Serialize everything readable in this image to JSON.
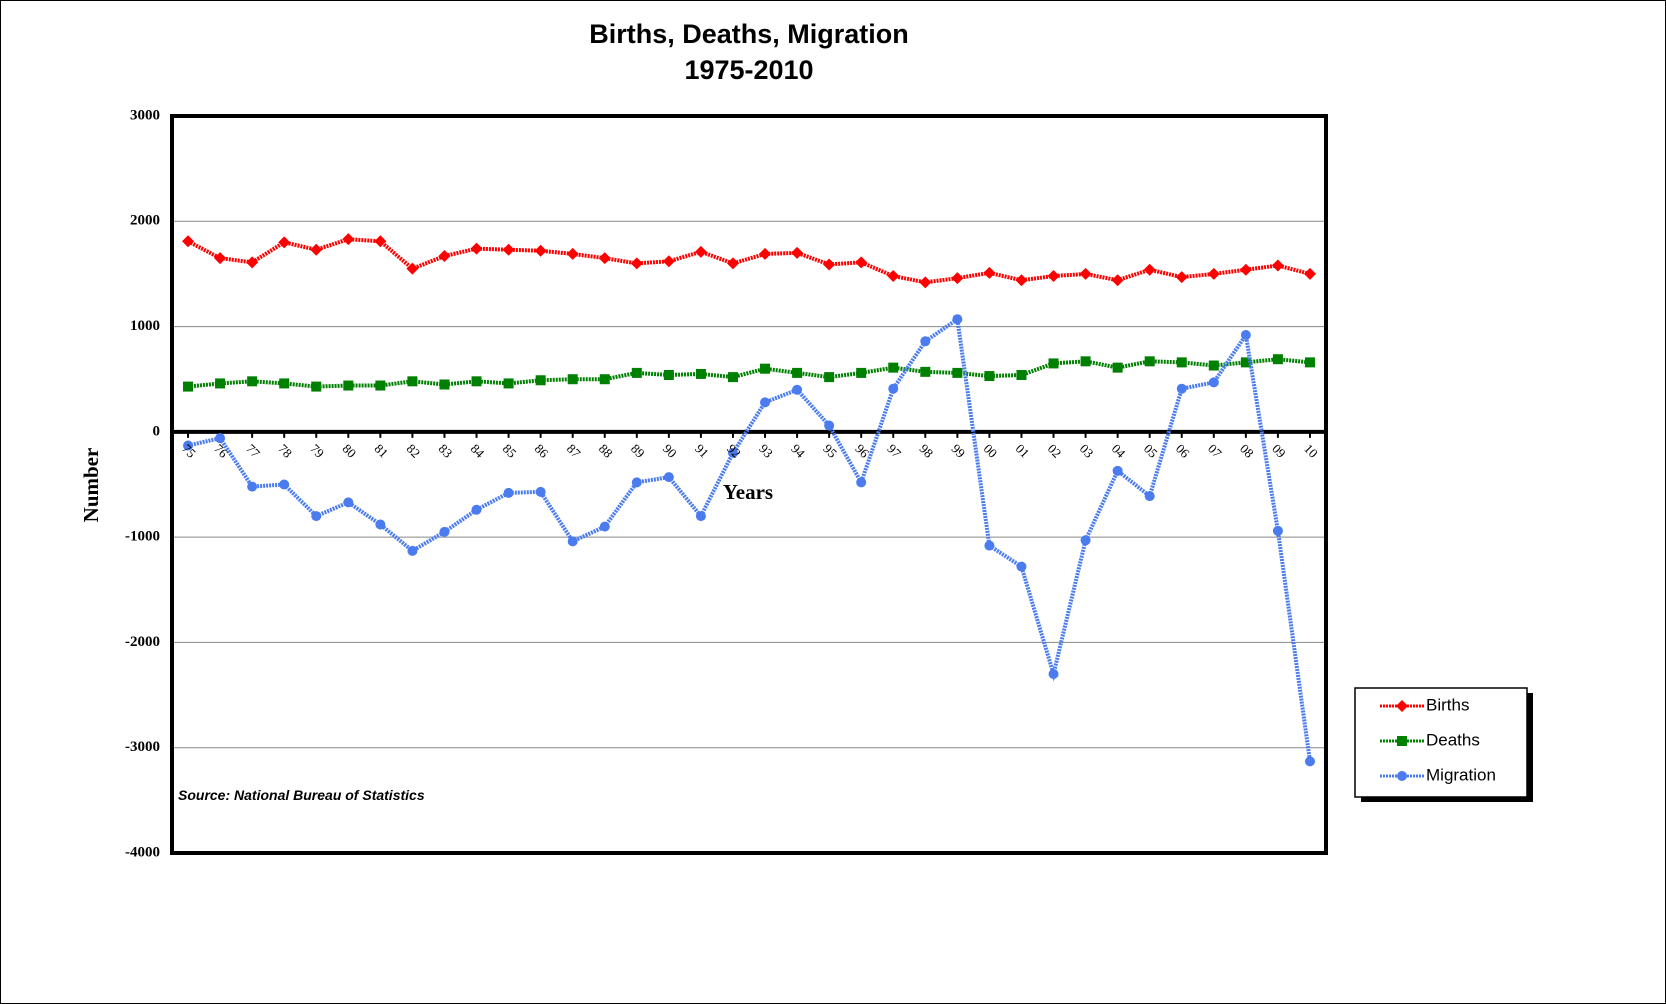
{
  "chart_data": {
    "type": "line",
    "title": "Births, Deaths, Migration",
    "subtitle": "1975-2010",
    "x_label": "Years",
    "y_label": "Number",
    "source": "Source: National Bureau of Statistics",
    "categories": [
      "75",
      "76",
      "77",
      "78",
      "79",
      "80",
      "81",
      "82",
      "83",
      "84",
      "85",
      "86",
      "87",
      "88",
      "89",
      "90",
      "91",
      "92",
      "93",
      "94",
      "95",
      "96",
      "97",
      "98",
      "99",
      "00",
      "01",
      "02",
      "03",
      "04",
      "05",
      "06",
      "07",
      "08",
      "09",
      "10"
    ],
    "series": [
      {
        "name": "Births",
        "color": "#ff0000",
        "marker": "diamond",
        "values": [
          1810,
          1650,
          1610,
          1800,
          1730,
          1830,
          1810,
          1550,
          1670,
          1740,
          1730,
          1720,
          1690,
          1650,
          1600,
          1620,
          1710,
          1600,
          1690,
          1700,
          1590,
          1610,
          1480,
          1420,
          1460,
          1510,
          1440,
          1480,
          1500,
          1440,
          1540,
          1470,
          1500,
          1540,
          1580,
          1500
        ]
      },
      {
        "name": "Deaths",
        "color": "#008000",
        "marker": "square",
        "values": [
          430,
          460,
          480,
          460,
          430,
          440,
          440,
          480,
          450,
          480,
          460,
          490,
          500,
          500,
          560,
          540,
          550,
          520,
          600,
          560,
          520,
          560,
          610,
          570,
          560,
          530,
          540,
          650,
          670,
          610,
          670,
          660,
          630,
          660,
          690,
          660
        ]
      },
      {
        "name": "Migration",
        "color": "#4a7cf0",
        "marker": "circle",
        "values": [
          -130,
          -60,
          -520,
          -500,
          -800,
          -670,
          -880,
          -1130,
          -950,
          -740,
          -580,
          -570,
          -1040,
          -900,
          -480,
          -430,
          -800,
          -200,
          280,
          400,
          60,
          -480,
          410,
          860,
          1070,
          -1080,
          -1280,
          -2300,
          -1030,
          -370,
          -610,
          410,
          470,
          920,
          -940,
          -3130
        ]
      }
    ],
    "ylim": [
      -4000,
      3000
    ],
    "yticks": [
      -4000,
      -3000,
      -2000,
      -1000,
      0,
      1000,
      2000,
      3000
    ],
    "grid": true,
    "legend": "right"
  }
}
